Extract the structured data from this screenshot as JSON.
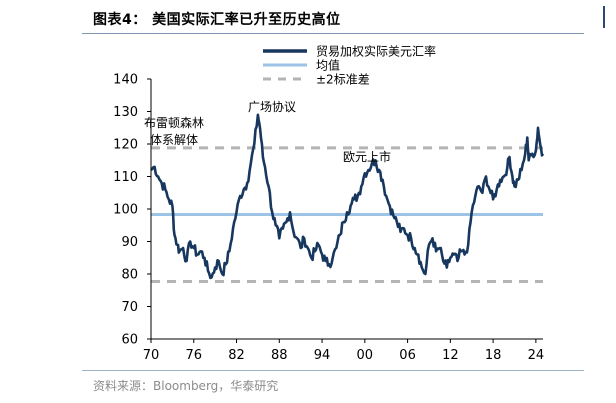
{
  "figure": {
    "title": "图表4：  美国实际汇率已升至历史高位",
    "source": "资料来源：Bloomberg，华泰研究"
  },
  "chart_data": {
    "type": "line",
    "title": "美国实际汇率已升至历史高位",
    "xlabel": "",
    "ylabel": "",
    "xlim": [
      1970,
      2025
    ],
    "ylim": [
      60,
      140
    ],
    "yticks": [
      "60",
      "70",
      "80",
      "90",
      "100",
      "110",
      "120",
      "130",
      "140"
    ],
    "xticks": [
      {
        "year": 1970,
        "label": "70"
      },
      {
        "year": 1976,
        "label": "76"
      },
      {
        "year": 1982,
        "label": "82"
      },
      {
        "year": 1988,
        "label": "88"
      },
      {
        "year": 1994,
        "label": "94"
      },
      {
        "year": 2000,
        "label": "00"
      },
      {
        "year": 2006,
        "label": "06"
      },
      {
        "year": 2012,
        "label": "12"
      },
      {
        "year": 2018,
        "label": "18"
      },
      {
        "year": 2024,
        "label": "24"
      }
    ],
    "legend_position": "top",
    "series": [
      {
        "name": "贸易加权实际美元汇率",
        "color": "#17375e",
        "style": "solid",
        "points": [
          [
            1970.0,
            112
          ],
          [
            1970.5,
            113
          ],
          [
            1971.0,
            110
          ],
          [
            1971.5,
            108
          ],
          [
            1972.0,
            106
          ],
          [
            1972.5,
            103
          ],
          [
            1973.0,
            101
          ],
          [
            1973.3,
            92
          ],
          [
            1973.7,
            89
          ],
          [
            1974.0,
            87
          ],
          [
            1974.5,
            88
          ],
          [
            1975.0,
            84
          ],
          [
            1975.5,
            90
          ],
          [
            1976.0,
            88
          ],
          [
            1976.5,
            86
          ],
          [
            1977.0,
            87
          ],
          [
            1977.5,
            85
          ],
          [
            1978.0,
            81
          ],
          [
            1978.5,
            79
          ],
          [
            1979.0,
            82
          ],
          [
            1979.5,
            84
          ],
          [
            1980.0,
            80
          ],
          [
            1980.5,
            83
          ],
          [
            1981.0,
            87
          ],
          [
            1981.5,
            94
          ],
          [
            1982.0,
            99
          ],
          [
            1982.5,
            104
          ],
          [
            1983.0,
            106
          ],
          [
            1983.5,
            108
          ],
          [
            1984.0,
            114
          ],
          [
            1984.5,
            120
          ],
          [
            1985.0,
            129
          ],
          [
            1985.3,
            125
          ],
          [
            1985.7,
            116
          ],
          [
            1986.0,
            113
          ],
          [
            1986.5,
            107
          ],
          [
            1987.0,
            99
          ],
          [
            1987.5,
            95
          ],
          [
            1988.0,
            91
          ],
          [
            1988.5,
            94
          ],
          [
            1989.0,
            96
          ],
          [
            1989.5,
            99
          ],
          [
            1990.0,
            93
          ],
          [
            1990.5,
            91
          ],
          [
            1991.0,
            88
          ],
          [
            1991.5,
            91
          ],
          [
            1992.0,
            88
          ],
          [
            1992.5,
            85
          ],
          [
            1993.0,
            87
          ],
          [
            1993.5,
            89
          ],
          [
            1994.0,
            86
          ],
          [
            1994.5,
            84
          ],
          [
            1995.0,
            83
          ],
          [
            1995.5,
            85
          ],
          [
            1996.0,
            88
          ],
          [
            1996.5,
            92
          ],
          [
            1997.0,
            96
          ],
          [
            1997.5,
            99
          ],
          [
            1998.0,
            101
          ],
          [
            1998.5,
            103
          ],
          [
            1999.0,
            104
          ],
          [
            1999.5,
            107
          ],
          [
            2000.0,
            111
          ],
          [
            2000.5,
            112
          ],
          [
            2001.0,
            114
          ],
          [
            2001.5,
            115
          ],
          [
            2002.0,
            112
          ],
          [
            2002.5,
            109
          ],
          [
            2003.0,
            104
          ],
          [
            2003.5,
            101
          ],
          [
            2004.0,
            98
          ],
          [
            2004.5,
            96
          ],
          [
            2005.0,
            93
          ],
          [
            2005.5,
            94
          ],
          [
            2006.0,
            92
          ],
          [
            2006.5,
            91
          ],
          [
            2007.0,
            88
          ],
          [
            2007.5,
            86
          ],
          [
            2008.0,
            82
          ],
          [
            2008.5,
            80
          ],
          [
            2009.0,
            89
          ],
          [
            2009.5,
            91
          ],
          [
            2010.0,
            87
          ],
          [
            2010.5,
            88
          ],
          [
            2011.0,
            84
          ],
          [
            2011.5,
            82
          ],
          [
            2012.0,
            85
          ],
          [
            2012.5,
            86
          ],
          [
            2013.0,
            84
          ],
          [
            2013.5,
            87
          ],
          [
            2014.0,
            86
          ],
          [
            2014.5,
            89
          ],
          [
            2015.0,
            99
          ],
          [
            2015.5,
            104
          ],
          [
            2016.0,
            107
          ],
          [
            2016.5,
            105
          ],
          [
            2017.0,
            110
          ],
          [
            2017.5,
            106
          ],
          [
            2018.0,
            103
          ],
          [
            2018.5,
            106
          ],
          [
            2019.0,
            109
          ],
          [
            2019.5,
            110
          ],
          [
            2020.0,
            113
          ],
          [
            2020.3,
            116
          ],
          [
            2020.7,
            110
          ],
          [
            2021.0,
            107
          ],
          [
            2021.5,
            109
          ],
          [
            2022.0,
            112
          ],
          [
            2022.5,
            117
          ],
          [
            2022.8,
            122
          ],
          [
            2023.0,
            115
          ],
          [
            2023.5,
            117
          ],
          [
            2024.0,
            118
          ],
          [
            2024.3,
            125
          ],
          [
            2024.6,
            120
          ],
          [
            2025.0,
            117
          ]
        ]
      },
      {
        "name": "均值",
        "color": "#9dc3e6",
        "style": "solid",
        "value": 98.3
      },
      {
        "name": "±2标准差",
        "color": "#b4b4b4",
        "style": "dashed",
        "upper": 118.8,
        "lower": 77.7
      }
    ],
    "annotations": [
      {
        "label": "布雷顿森林体系解体",
        "lines": [
          "布雷顿森林",
          "体系解体"
        ],
        "year": 1970.2,
        "value": 112
      },
      {
        "label": "广场协议",
        "lines": [
          "广场协议"
        ],
        "year": 1985.0,
        "value": 129
      },
      {
        "label": "欧元上市",
        "lines": [
          "欧元上市"
        ],
        "year": 2000.9,
        "value": 115
      }
    ]
  }
}
